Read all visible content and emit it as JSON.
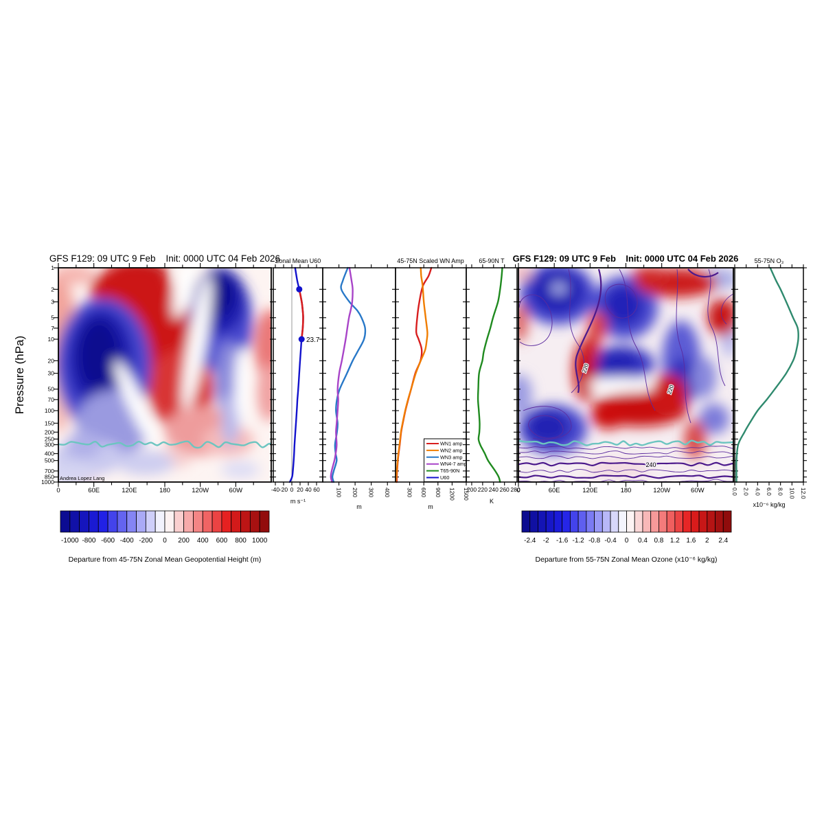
{
  "ylabel": "Pressure (hPa)",
  "pressure_ticks": [
    1,
    2,
    3,
    5,
    7,
    10,
    20,
    30,
    50,
    70,
    100,
    150,
    200,
    250,
    300,
    400,
    500,
    700,
    850,
    1000
  ],
  "colorbar_stops": [
    [
      -1,
      "#0a0a87"
    ],
    [
      -0.6,
      "#1e1ee6"
    ],
    [
      -0.3,
      "#8c8cf5"
    ],
    [
      -0.06,
      "#eeeefc"
    ],
    [
      0,
      "#ffffff"
    ],
    [
      0.06,
      "#fceeee"
    ],
    [
      0.3,
      "#f58c8c"
    ],
    [
      0.6,
      "#e61e1e"
    ],
    [
      1,
      "#870a0a"
    ]
  ],
  "chart_data": [
    {
      "id": "geo_height_map",
      "type": "heatmap",
      "title": "GFS F129: 09 UTC 9 Feb    Init: 0000 UTC 04 Feb 2026",
      "x_tick_labels": [
        "0",
        "60E",
        "120E",
        "180",
        "120W",
        "60W"
      ],
      "y_scale": "log",
      "watermark": "Andrea Lopez Lang",
      "value_range": [
        -1100,
        1100
      ],
      "features": [
        {
          "anomaly": "negative",
          "center_longitude": "75E",
          "pressure_range_hPa": [
            3,
            100
          ],
          "approx_min_m": -1000
        },
        {
          "anomaly": "negative",
          "center_longitude": "165W",
          "pressure_range_hPa": [
            1,
            30
          ],
          "approx_min_m": -1000
        },
        {
          "anomaly": "positive",
          "center_longitude": "140E",
          "pressure_range_hPa": [
            1,
            150
          ],
          "approx_max_m": 1000
        },
        {
          "anomaly": "positive",
          "center_longitude": "20W",
          "pressure_range_hPa": [
            5,
            200
          ],
          "approx_max_m": 500
        },
        {
          "feature": "tropopause-line",
          "color": "#6cc5c0",
          "pressure_hPa": 300
        }
      ],
      "colorbar": {
        "caption": "Departure from 45-75N Zonal Mean Geopotential Height (m)",
        "tick_labels": [
          "-1000",
          "-800",
          "-600",
          "-400",
          "-200",
          "0",
          "200",
          "400",
          "600",
          "800",
          "1000"
        ],
        "range": [
          -1100,
          1100
        ],
        "step": 100
      }
    },
    {
      "id": "zonal_mean_u60",
      "type": "line",
      "title": "Zonal Mean U60",
      "xlabel": "m s⁻¹",
      "x_tick_labels": [
        "-40",
        "-20",
        "0",
        "20",
        "40",
        "60"
      ],
      "xlim": [
        -45,
        75
      ],
      "zero_line": true,
      "series": [
        {
          "name": "U60",
          "color": "#1212cc",
          "pressure_hPa": [
            1,
            1.5,
            2,
            3,
            4,
            5,
            7,
            10,
            15,
            20,
            30,
            50,
            70,
            100,
            150,
            200,
            300,
            400,
            500,
            700,
            850,
            1000
          ],
          "values_ms": [
            8,
            13,
            18,
            24,
            26.5,
            27.5,
            26.5,
            23.7,
            21.5,
            20,
            18,
            15.5,
            13.5,
            12,
            10,
            8.5,
            6.5,
            5.5,
            4.5,
            2.5,
            0.5,
            -5
          ]
        }
      ],
      "highlight_segment": {
        "pressure_range": [
          2,
          10
        ],
        "color": "#d81e1e"
      },
      "markers": [
        {
          "pressure_hPa": 2,
          "value": 18
        },
        {
          "pressure_hPa": 10,
          "value": 23.7
        }
      ],
      "annotation": "23.7"
    },
    {
      "id": "wn3_wn47_amp",
      "type": "line",
      "xlabel": "m",
      "x_tick_labels": [
        "100",
        "200",
        "300",
        "400"
      ],
      "xlim": [
        0,
        450
      ],
      "series": [
        {
          "name": "WN3 amp",
          "color": "#2878c8",
          "pressure_hPa": [
            1,
            1.5,
            2,
            3,
            4,
            5,
            7,
            10,
            15,
            20,
            30,
            50,
            70,
            100,
            150,
            200,
            300,
            400,
            500,
            700,
            850,
            1000
          ],
          "values_m": [
            155,
            125,
            115,
            165,
            215,
            240,
            262,
            255,
            215,
            185,
            150,
            105,
            88,
            82,
            92,
            88,
            76,
            80,
            86,
            68,
            60,
            68
          ]
        },
        {
          "name": "WN4-7 amp",
          "color": "#a844c8",
          "pressure_hPa": [
            1,
            1.5,
            2,
            3,
            4,
            5,
            7,
            10,
            15,
            20,
            30,
            50,
            70,
            100,
            150,
            200,
            300,
            400,
            500,
            700,
            850,
            1000
          ],
          "values_m": [
            165,
            178,
            185,
            182,
            172,
            162,
            152,
            142,
            128,
            118,
            102,
            92,
            96,
            92,
            86,
            82,
            86,
            80,
            72,
            55,
            50,
            58
          ]
        }
      ]
    },
    {
      "id": "wn1_wn2_amp",
      "type": "line",
      "title": "45-75N Scaled WN Amp",
      "xlabel": "m",
      "x_tick_labels": [
        "300",
        "600",
        "900",
        "1200",
        "1500"
      ],
      "xlim": [
        0,
        1500
      ],
      "series": [
        {
          "name": "WN1 amp",
          "color": "#d81e1e",
          "pressure_hPa": [
            1,
            1.3,
            1.8,
            3,
            5,
            8,
            10,
            14,
            20,
            30,
            50,
            70,
            100,
            150,
            200,
            300,
            400,
            500,
            700,
            850,
            1000
          ],
          "values_m": [
            760,
            700,
            580,
            505,
            460,
            440,
            490,
            555,
            530,
            420,
            330,
            270,
            210,
            155,
            120,
            90,
            65,
            50,
            34,
            28,
            25
          ]
        },
        {
          "name": "WN2 amp",
          "color": "#f07d00",
          "pressure_hPa": [
            1,
            1.3,
            1.8,
            3,
            5,
            8,
            10,
            14,
            20,
            30,
            50,
            70,
            100,
            150,
            200,
            300,
            400,
            500,
            700,
            850,
            1000
          ],
          "values_m": [
            535,
            545,
            575,
            600,
            640,
            675,
            665,
            630,
            535,
            430,
            330,
            265,
            205,
            150,
            115,
            85,
            60,
            45,
            28,
            20,
            8
          ]
        }
      ],
      "legend": [
        {
          "label": "WN1 amp",
          "color": "#d81e1e"
        },
        {
          "label": "WN2 amp",
          "color": "#f07d00"
        },
        {
          "label": "WN3 amp",
          "color": "#2878c8"
        },
        {
          "label": "WN4-7 amp",
          "color": "#a844c8"
        },
        {
          "label": "T65-90N",
          "color": "#1f8a1f"
        },
        {
          "label": "U60",
          "color": "#1212cc"
        }
      ]
    },
    {
      "id": "t65_90n",
      "type": "line",
      "title": "65-90N T",
      "xlabel": "K",
      "x_tick_labels": [
        "200",
        "220",
        "240",
        "260",
        "280"
      ],
      "xlim": [
        190,
        283
      ],
      "series": [
        {
          "name": "T65-90N",
          "color": "#1f8a1f",
          "pressure_hPa": [
            1,
            1.5,
            2,
            3,
            5,
            7,
            10,
            15,
            20,
            30,
            50,
            70,
            100,
            150,
            200,
            250,
            300,
            350,
            400,
            500,
            700,
            850,
            1000
          ],
          "values_K": [
            256,
            254,
            252,
            248,
            239,
            234,
            228,
            222,
            219.5,
            213.5,
            212,
            211.5,
            213,
            214.5,
            214,
            212.5,
            215.5,
            220,
            224,
            230,
            243,
            249.5,
            252
          ]
        }
      ]
    },
    {
      "id": "ozone_departure_map",
      "type": "heatmap",
      "title": "GFS F129: 09 UTC 9 Feb    Init: 0000 UTC 04 Feb 2026",
      "x_tick_labels": [
        "0",
        "60E",
        "120E",
        "180",
        "120W",
        "60W"
      ],
      "y_scale": "log",
      "contour_labels": [
        "220",
        "220",
        "240"
      ],
      "value_range": [
        -2.6,
        2.6
      ],
      "features": [
        {
          "anomaly": "negative",
          "center_longitude": "40E",
          "pressure_range_hPa": [
            1,
            4
          ]
        },
        {
          "anomaly": "negative",
          "center_longitude": "170E",
          "pressure_range_hPa": [
            1,
            20
          ]
        },
        {
          "anomaly": "negative",
          "center_longitude": "90W",
          "pressure_range_hPa": [
            5,
            50
          ]
        },
        {
          "anomaly": "negative",
          "center_longitude": "35E",
          "pressure_range_hPa": [
            30,
            100
          ]
        },
        {
          "anomaly": "positive",
          "center_longitude": "100W",
          "pressure_range_hPa": [
            1,
            3
          ]
        },
        {
          "anomaly": "positive",
          "center_longitude": "70E",
          "pressure_range_hPa": [
            7,
            25
          ]
        },
        {
          "anomaly": "positive",
          "center_longitude": "150E-60W",
          "pressure_range_hPa": [
            20,
            60
          ]
        },
        {
          "feature": "tropopause-line",
          "color": "#6cc5c0",
          "pressure_hPa": 300
        }
      ],
      "colorbar": {
        "caption": "Departure from 55-75N Zonal Mean Ozone (x10⁻⁶ kg/kg)",
        "tick_labels": [
          "-2.4",
          "-2",
          "-1.6",
          "-1.2",
          "-0.8",
          "-0.4",
          "0",
          "0.4",
          "0.8",
          "1.2",
          "1.6",
          "2",
          "2.4"
        ],
        "range": [
          -2.6,
          2.6
        ],
        "step": 0.2
      }
    },
    {
      "id": "o3_profile",
      "type": "line",
      "title": "55-75N O₃",
      "xlabel": "x10⁻⁶ kg/kg",
      "x_tick_labels": [
        "0.0",
        "2.0",
        "4.0",
        "6.0",
        "8.0",
        "10.0",
        "12.0"
      ],
      "xlim": [
        0,
        12
      ],
      "series": [
        {
          "name": "55-75N O3",
          "color": "#2f8a6e",
          "pressure_hPa": [
            1,
            1.5,
            2,
            3,
            5,
            7,
            10,
            15,
            20,
            30,
            50,
            70,
            100,
            150,
            200,
            300,
            500,
            700,
            1000
          ],
          "values": [
            6.2,
            7.2,
            8.0,
            9.0,
            10.2,
            11.0,
            11.1,
            10.7,
            10.2,
            9.0,
            7.0,
            5.6,
            4.0,
            2.6,
            1.7,
            0.6,
            0.3,
            0.3,
            0.3
          ]
        }
      ]
    }
  ]
}
